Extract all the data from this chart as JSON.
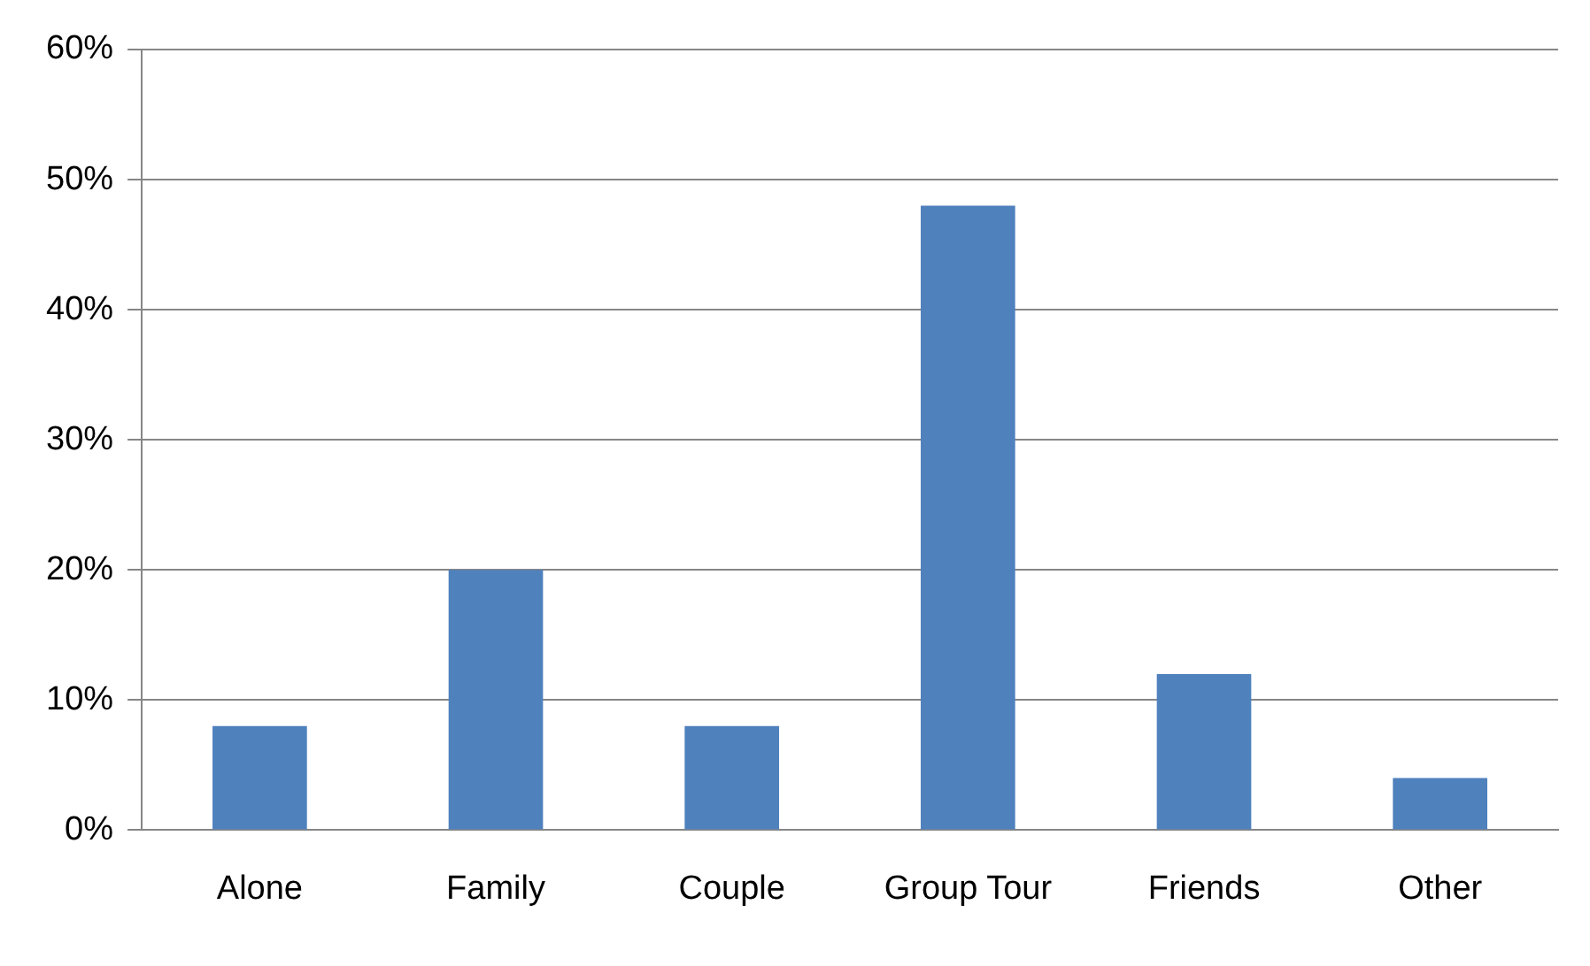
{
  "chart_data": {
    "type": "bar",
    "categories": [
      "Alone",
      "Family",
      "Couple",
      "Group Tour",
      "Friends",
      "Other"
    ],
    "values": [
      8,
      20,
      8,
      48,
      12,
      4
    ],
    "color": "#4f81bd",
    "ylim": [
      0,
      60
    ],
    "yticks": [
      {
        "value": 0,
        "label": "0%"
      },
      {
        "value": 10,
        "label": "10%"
      },
      {
        "value": 20,
        "label": "20%"
      },
      {
        "value": 30,
        "label": "30%"
      },
      {
        "value": 40,
        "label": "40%"
      },
      {
        "value": 50,
        "label": "50%"
      },
      {
        "value": 60,
        "label": "60%"
      }
    ],
    "grid": "y"
  }
}
